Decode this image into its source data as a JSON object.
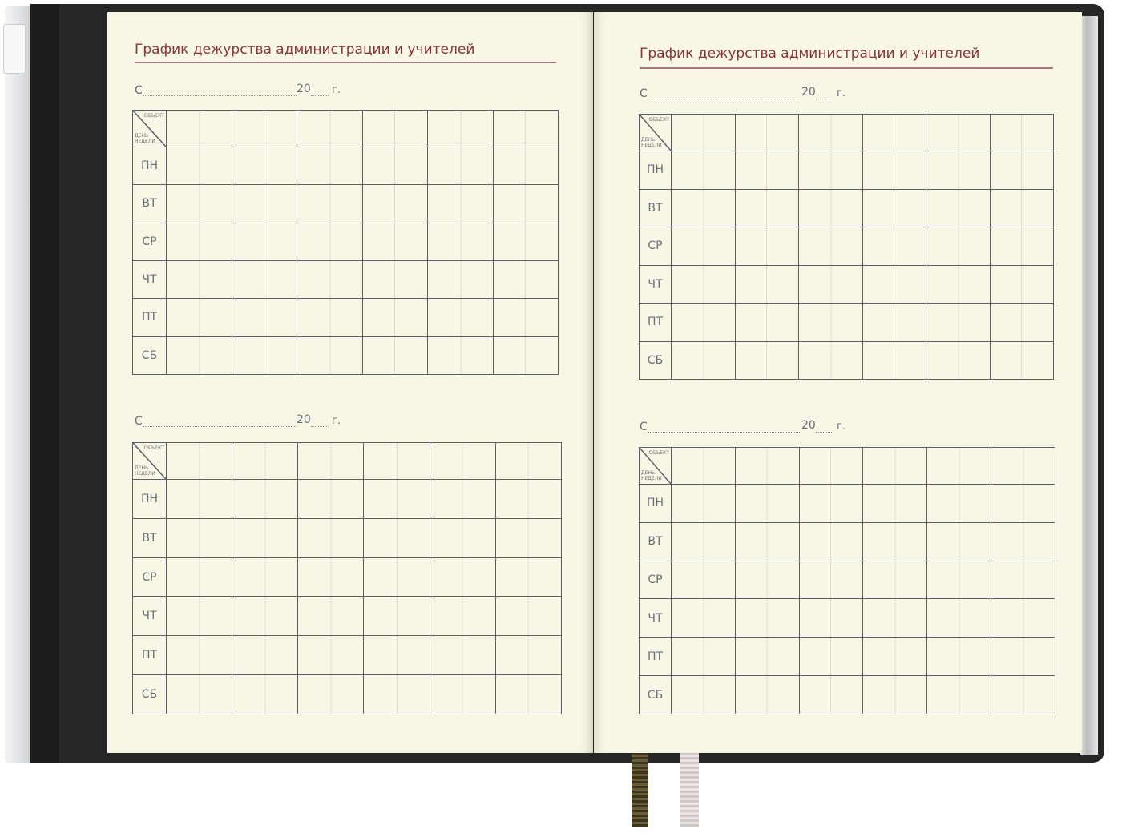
{
  "pages": [
    {
      "title": "График дежурства администрации и учителей",
      "blocks": [
        {
          "date_prefix": "С",
          "year_prefix": "20",
          "year_suffix": "г."
        },
        {
          "date_prefix": "С",
          "year_prefix": "20",
          "year_suffix": "г."
        }
      ]
    },
    {
      "title": "График дежурства администрации и учителей",
      "blocks": [
        {
          "date_prefix": "С",
          "year_prefix": "20",
          "year_suffix": "г."
        },
        {
          "date_prefix": "С",
          "year_prefix": "20",
          "year_suffix": "г."
        }
      ]
    }
  ],
  "table": {
    "corner_top": "ОБЪЕКТ",
    "corner_bottom": "ДЕНЬ НЕДЕЛИ",
    "days": [
      "ПН",
      "ВТ",
      "СР",
      "ЧТ",
      "ПТ",
      "СБ"
    ],
    "object_columns": 6
  },
  "colors": {
    "title": "#8a3341",
    "page": "#f8f6e4",
    "cover": "#262626",
    "ribbon_1": "#5a4e2a",
    "ribbon_2": "#ddd5d3"
  }
}
